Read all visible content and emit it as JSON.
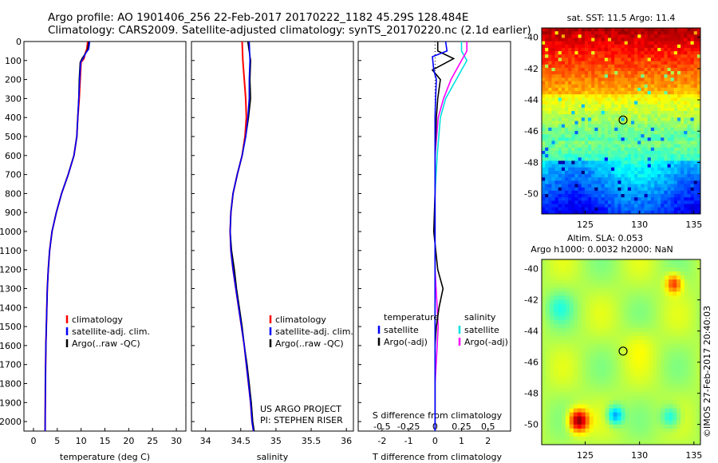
{
  "header": {
    "line1": "Argo profile: AO 1901406_256 22-Feb-2017 20170222_1182 45.29S 128.484E",
    "line2": "Climatology: CARS2009. Satellite-adjusted climatology: synTS_20170220.nc (2.1d earlier)"
  },
  "colors": {
    "climatology": "#ff0000",
    "satellite": "#0000ff",
    "argo": "#000000",
    "sat_s": "#00e0e0",
    "argo_s": "#ff00ff"
  },
  "depth_ticks": [
    0,
    100,
    200,
    300,
    400,
    500,
    600,
    700,
    800,
    900,
    1000,
    1100,
    1200,
    1300,
    1400,
    1500,
    1600,
    1700,
    1800,
    1900,
    2000
  ],
  "temp_panel": {
    "xlabel": "temperature (deg C)",
    "xticks": [
      "0",
      "5",
      "10",
      "15",
      "20",
      "25",
      "30"
    ],
    "xlim": [
      -2,
      32
    ],
    "legend": [
      "climatology",
      "satellite-adj. clim.",
      "Argo(..raw -QC)"
    ]
  },
  "sal_panel": {
    "xlabel": "salinity",
    "xticks": [
      "34",
      "34.5",
      "35",
      "35.5",
      "36"
    ],
    "xlim": [
      33.8,
      36.1
    ],
    "legend": [
      "climatology",
      "satellite-adj. clim.",
      "Argo(..raw -QC)"
    ],
    "credit1": "US ARGO PROJECT",
    "credit2": "PI: STEPHEN RISER"
  },
  "diff_panel": {
    "xlabel": "T difference from climatology",
    "xlabel_top": "S difference from climatology",
    "t_ticks": [
      "-2",
      "-1",
      "0",
      "1",
      "2"
    ],
    "s_ticks": [
      "-0.5",
      "-0.25",
      "0",
      "0.25",
      "0.5"
    ],
    "legend_left_title": "temperature",
    "legend_left": [
      "satellite",
      "Argo(-adj)"
    ],
    "legend_right_title": "salinity",
    "legend_right": [
      "satellite",
      "Argo(-adj)"
    ]
  },
  "sst_map": {
    "title": "sat. SST: 11.5 Argo: 11.4",
    "yticks": [
      "-40",
      "-42",
      "-44",
      "-46",
      "-48",
      "-50"
    ],
    "xticks": [
      "125",
      "130",
      "135"
    ]
  },
  "sla_map": {
    "title1": "Altim. SLA: 0.053",
    "title2": "Argo h1000: 0.0032 h2000: NaN",
    "yticks": [
      "-40",
      "-42",
      "-44",
      "-46",
      "-48",
      "-50"
    ],
    "xticks": [
      "125",
      "130",
      "135"
    ],
    "stamp": "©IMOS 27-Feb-2017 20:40:03"
  },
  "chart_data": [
    {
      "type": "line",
      "name": "temperature profile",
      "xlabel": "temperature (deg C)",
      "ylabel": "",
      "xlim": [
        -2,
        32
      ],
      "ylim": [
        2050,
        0
      ],
      "series": [
        {
          "name": "climatology",
          "x": [
            11.4,
            11.2,
            10.9,
            10.6,
            10.0,
            9.8,
            9.6,
            9.3,
            9.1,
            8.5,
            7.3,
            5.9,
            4.8,
            3.9,
            3.4,
            3.1,
            2.9,
            2.8,
            2.7,
            2.6,
            2.5,
            2.45
          ],
          "depth": [
            0,
            40,
            60,
            90,
            110,
            200,
            300,
            400,
            500,
            600,
            700,
            800,
            900,
            1000,
            1100,
            1200,
            1300,
            1400,
            1500,
            1600,
            1800,
            2050
          ]
        },
        {
          "name": "satellite-adj. clim.",
          "x": [
            11.8,
            11.6,
            11.0,
            10.4,
            9.9,
            9.7,
            9.5,
            9.3,
            9.1,
            8.5,
            7.3,
            5.9,
            4.8,
            3.9,
            3.4,
            3.1,
            2.9,
            2.8,
            2.7,
            2.6,
            2.5,
            2.45
          ],
          "depth": [
            0,
            40,
            60,
            90,
            110,
            200,
            300,
            400,
            500,
            600,
            700,
            800,
            900,
            1000,
            1100,
            1200,
            1300,
            1400,
            1500,
            1600,
            1800,
            2050
          ]
        },
        {
          "name": "Argo(..raw -QC)",
          "x": [
            11.6,
            11.4,
            11.0,
            10.2,
            9.8,
            9.6,
            9.5,
            9.3,
            9.1,
            8.5,
            7.3,
            5.9,
            4.8,
            3.9,
            3.4,
            3.1,
            2.9,
            2.8,
            2.7,
            2.6,
            2.5,
            2.45
          ],
          "depth": [
            0,
            40,
            60,
            90,
            110,
            200,
            300,
            400,
            500,
            600,
            700,
            800,
            900,
            1000,
            1100,
            1200,
            1300,
            1400,
            1500,
            1600,
            1800,
            2050
          ]
        }
      ]
    },
    {
      "type": "line",
      "name": "salinity profile",
      "xlabel": "salinity",
      "xlim": [
        33.8,
        36.1
      ],
      "ylim": [
        2050,
        0
      ],
      "series": [
        {
          "name": "climatology",
          "x": [
            34.52,
            34.53,
            34.55,
            34.57,
            34.58,
            34.56,
            34.52,
            34.45,
            34.39,
            34.36,
            34.35,
            34.36,
            34.39,
            34.43,
            34.47,
            34.51,
            34.55,
            34.58,
            34.61,
            34.64,
            34.66,
            34.68
          ],
          "depth": [
            0,
            100,
            200,
            300,
            400,
            500,
            600,
            700,
            800,
            900,
            1000,
            1100,
            1200,
            1300,
            1400,
            1500,
            1600,
            1700,
            1800,
            1900,
            2000,
            2050
          ]
        },
        {
          "name": "satellite-adj. clim.",
          "x": [
            34.62,
            34.63,
            34.62,
            34.62,
            34.6,
            34.57,
            34.52,
            34.45,
            34.39,
            34.36,
            34.35,
            34.36,
            34.39,
            34.43,
            34.47,
            34.51,
            34.55,
            34.58,
            34.61,
            34.64,
            34.66,
            34.68
          ],
          "depth": [
            0,
            100,
            200,
            300,
            400,
            500,
            600,
            700,
            800,
            900,
            1000,
            1100,
            1200,
            1300,
            1400,
            1500,
            1600,
            1700,
            1800,
            1900,
            2000,
            2050
          ]
        },
        {
          "name": "Argo(..raw -QC)",
          "x": [
            34.6,
            34.64,
            34.63,
            34.64,
            34.61,
            34.57,
            34.52,
            34.45,
            34.39,
            34.36,
            34.35,
            34.37,
            34.41,
            34.44,
            34.48,
            34.52,
            34.55,
            34.59,
            34.62,
            34.65,
            34.67,
            34.69
          ],
          "depth": [
            0,
            100,
            200,
            300,
            400,
            500,
            600,
            700,
            800,
            900,
            1000,
            1100,
            1200,
            1300,
            1400,
            1500,
            1600,
            1700,
            1800,
            1900,
            2000,
            2050
          ]
        }
      ]
    },
    {
      "type": "line",
      "name": "difference from climatology",
      "xlabel": "T difference from climatology",
      "xlim": [
        -2,
        2
      ],
      "ylim": [
        2050,
        0
      ],
      "series": [
        {
          "name": "temperature satellite",
          "x": [
            0.4,
            0.45,
            -0.1,
            -0.05,
            0.05,
            0.02,
            0.0,
            0.0,
            0.0,
            0.0,
            0.0,
            0.0,
            0.0,
            0.0,
            0.0,
            0.0,
            0.0
          ],
          "depth": [
            0,
            50,
            80,
            150,
            200,
            300,
            400,
            600,
            800,
            1000,
            1200,
            1400,
            1500,
            1600,
            1800,
            1900,
            2050
          ]
        },
        {
          "name": "temperature Argo(-adj)",
          "x": [
            0.1,
            0.1,
            0.7,
            -0.1,
            0.2,
            0.1,
            0.05,
            0.0,
            0.0,
            -0.05,
            0.1,
            0.3,
            0.15,
            0.05,
            0.0,
            0.0,
            0.0
          ],
          "depth": [
            0,
            50,
            90,
            150,
            200,
            300,
            400,
            600,
            800,
            1000,
            1200,
            1300,
            1400,
            1500,
            1600,
            1800,
            2050
          ]
        },
        {
          "name": "salinity satellite",
          "x": [
            0.25,
            0.25,
            0.3,
            0.2,
            0.1,
            0.05,
            0.02,
            0.0,
            0.0,
            0.0,
            0.0,
            0.0,
            0.0,
            0.0,
            0.0,
            0.0,
            0.0
          ],
          "depth": [
            0,
            50,
            100,
            200,
            300,
            400,
            600,
            800,
            1000,
            1200,
            1400,
            1500,
            1600,
            1700,
            1800,
            1900,
            2050
          ]
        },
        {
          "name": "salinity Argo(-adj)",
          "x": [
            0.3,
            0.3,
            0.25,
            0.15,
            0.08,
            0.03,
            0.0,
            0.0,
            0.0,
            0.0,
            0.02,
            0.03,
            0.02,
            0.01,
            0.0,
            0.0,
            0.0
          ],
          "depth": [
            0,
            50,
            100,
            200,
            300,
            400,
            600,
            800,
            1000,
            1200,
            1400,
            1500,
            1600,
            1700,
            1800,
            1900,
            2050
          ]
        }
      ]
    }
  ]
}
